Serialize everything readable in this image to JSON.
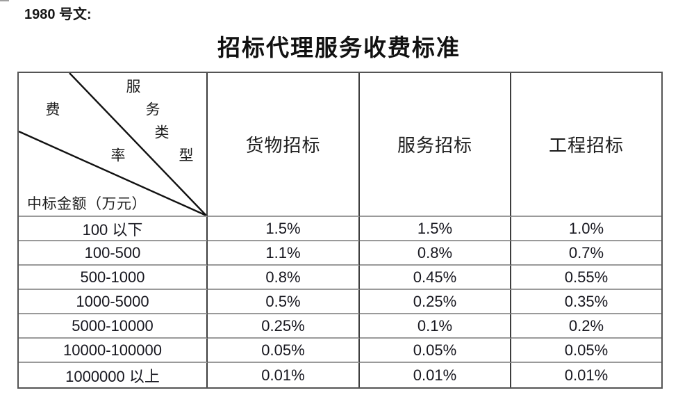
{
  "doc_number": "1980 号文:",
  "title": "招标代理服务收费标准",
  "table": {
    "corner": {
      "service_type_chars": [
        "服",
        "务",
        "类",
        "型"
      ],
      "fee_rate_chars": [
        "费",
        "率"
      ],
      "row_axis_label": "中标金额（万元）"
    },
    "columns": [
      "货物招标",
      "服务招标",
      "工程招标"
    ],
    "rows": [
      {
        "range": "100 以下",
        "values": [
          "1.5%",
          "1.5%",
          "1.0%"
        ]
      },
      {
        "range": "100-500",
        "values": [
          "1.1%",
          "0.8%",
          "0.7%"
        ]
      },
      {
        "range": "500-1000",
        "values": [
          "0.8%",
          "0.45%",
          "0.55%"
        ]
      },
      {
        "range": "1000-5000",
        "values": [
          "0.5%",
          "0.25%",
          "0.35%"
        ]
      },
      {
        "range": "5000-10000",
        "values": [
          "0.25%",
          "0.1%",
          "0.2%"
        ]
      },
      {
        "range": "10000-100000",
        "values": [
          "0.05%",
          "0.05%",
          "0.05%"
        ]
      },
      {
        "range": "1000000 以上",
        "values": [
          "0.01%",
          "0.01%",
          "0.01%"
        ]
      }
    ]
  },
  "colors": {
    "text": "#1d1d1d",
    "outer_border": "#545454",
    "vertical_grid": "#3d3d3d",
    "horizontal_grid": "#9a9a9a",
    "diagonal_line": "#111111"
  }
}
